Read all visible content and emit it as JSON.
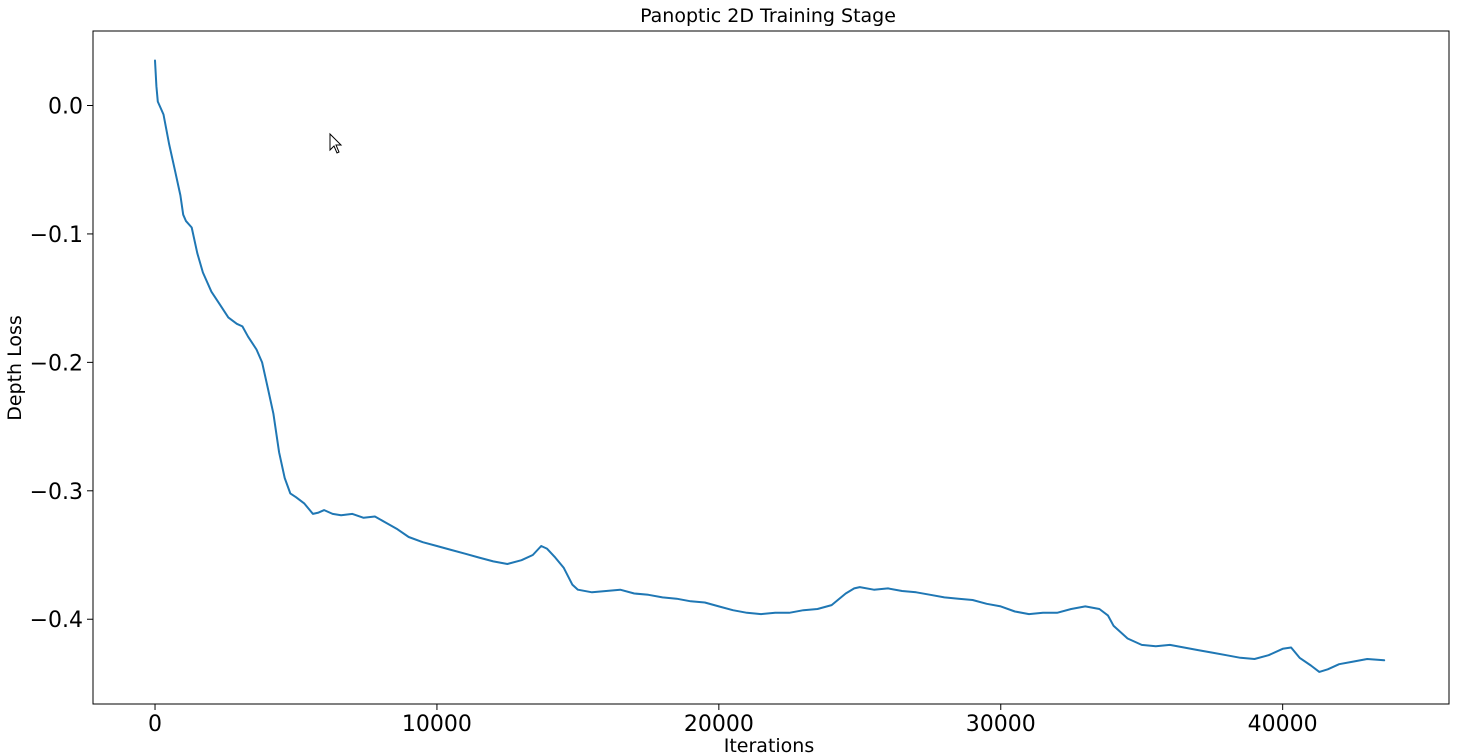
{
  "chart_data": {
    "type": "line",
    "title": "Panoptic 2D Training Stage",
    "xlabel": "Iterations",
    "ylabel": "Depth Loss",
    "xlim": [
      -2200,
      45900
    ],
    "ylim": [
      -0.466,
      0.058
    ],
    "xticks": [
      0,
      10000,
      20000,
      30000,
      40000
    ],
    "xtick_labels": [
      "0",
      "10000",
      "20000",
      "30000",
      "40000"
    ],
    "yticks": [
      0.0,
      -0.1,
      -0.2,
      -0.3,
      -0.4
    ],
    "ytick_labels": [
      "0.0",
      "−0.1",
      "−0.2",
      "−0.3",
      "−0.4"
    ],
    "grid": false,
    "line_color": "#1f77b4",
    "series": [
      {
        "x": [
          0,
          50,
          100,
          200,
          300,
          500,
          700,
          900,
          1000,
          1100,
          1300,
          1500,
          1700,
          2000,
          2300,
          2600,
          2900,
          3100,
          3300,
          3600,
          3800,
          4000,
          4200,
          4400,
          4600,
          4800,
          5000,
          5300,
          5600,
          5800,
          6000,
          6300,
          6600,
          7000,
          7400,
          7800,
          8200,
          8600,
          9000,
          9500,
          10000,
          10500,
          11000,
          11500,
          12000,
          12500,
          13000,
          13400,
          13700,
          13900,
          14200,
          14500,
          14800,
          15000,
          15500,
          16000,
          16500,
          17000,
          17500,
          18000,
          18500,
          19000,
          19500,
          20000,
          20500,
          21000,
          21500,
          22000,
          22500,
          23000,
          23500,
          24000,
          24500,
          24800,
          25000,
          25500,
          26000,
          26500,
          27000,
          27500,
          28000,
          28500,
          29000,
          29500,
          30000,
          30500,
          31000,
          31500,
          32000,
          32500,
          33000,
          33500,
          33800,
          34000,
          34500,
          35000,
          35500,
          36000,
          36500,
          37000,
          37500,
          38000,
          38500,
          39000,
          39500,
          40000,
          40300,
          40600,
          41000,
          41300,
          41600,
          42000,
          42500,
          43000,
          43600
        ],
        "y": [
          0.035,
          0.015,
          0.003,
          -0.002,
          -0.007,
          -0.03,
          -0.05,
          -0.07,
          -0.085,
          -0.09,
          -0.095,
          -0.115,
          -0.13,
          -0.145,
          -0.155,
          -0.165,
          -0.17,
          -0.172,
          -0.18,
          -0.19,
          -0.2,
          -0.22,
          -0.24,
          -0.27,
          -0.29,
          -0.302,
          -0.305,
          -0.31,
          -0.318,
          -0.317,
          -0.315,
          -0.318,
          -0.319,
          -0.318,
          -0.321,
          -0.32,
          -0.325,
          -0.33,
          -0.336,
          -0.34,
          -0.343,
          -0.346,
          -0.349,
          -0.352,
          -0.355,
          -0.357,
          -0.354,
          -0.35,
          -0.343,
          -0.345,
          -0.352,
          -0.36,
          -0.373,
          -0.377,
          -0.379,
          -0.378,
          -0.377,
          -0.38,
          -0.381,
          -0.383,
          -0.384,
          -0.386,
          -0.387,
          -0.39,
          -0.393,
          -0.395,
          -0.396,
          -0.395,
          -0.395,
          -0.393,
          -0.392,
          -0.389,
          -0.38,
          -0.376,
          -0.375,
          -0.377,
          -0.376,
          -0.378,
          -0.379,
          -0.381,
          -0.383,
          -0.384,
          -0.385,
          -0.388,
          -0.39,
          -0.394,
          -0.396,
          -0.395,
          -0.395,
          -0.392,
          -0.39,
          -0.392,
          -0.397,
          -0.405,
          -0.415,
          -0.42,
          -0.421,
          -0.42,
          -0.422,
          -0.424,
          -0.426,
          -0.428,
          -0.43,
          -0.431,
          -0.428,
          -0.423,
          -0.422,
          -0.43,
          -0.436,
          -0.441,
          -0.439,
          -0.435,
          -0.433,
          -0.431,
          -0.432
        ]
      }
    ]
  }
}
